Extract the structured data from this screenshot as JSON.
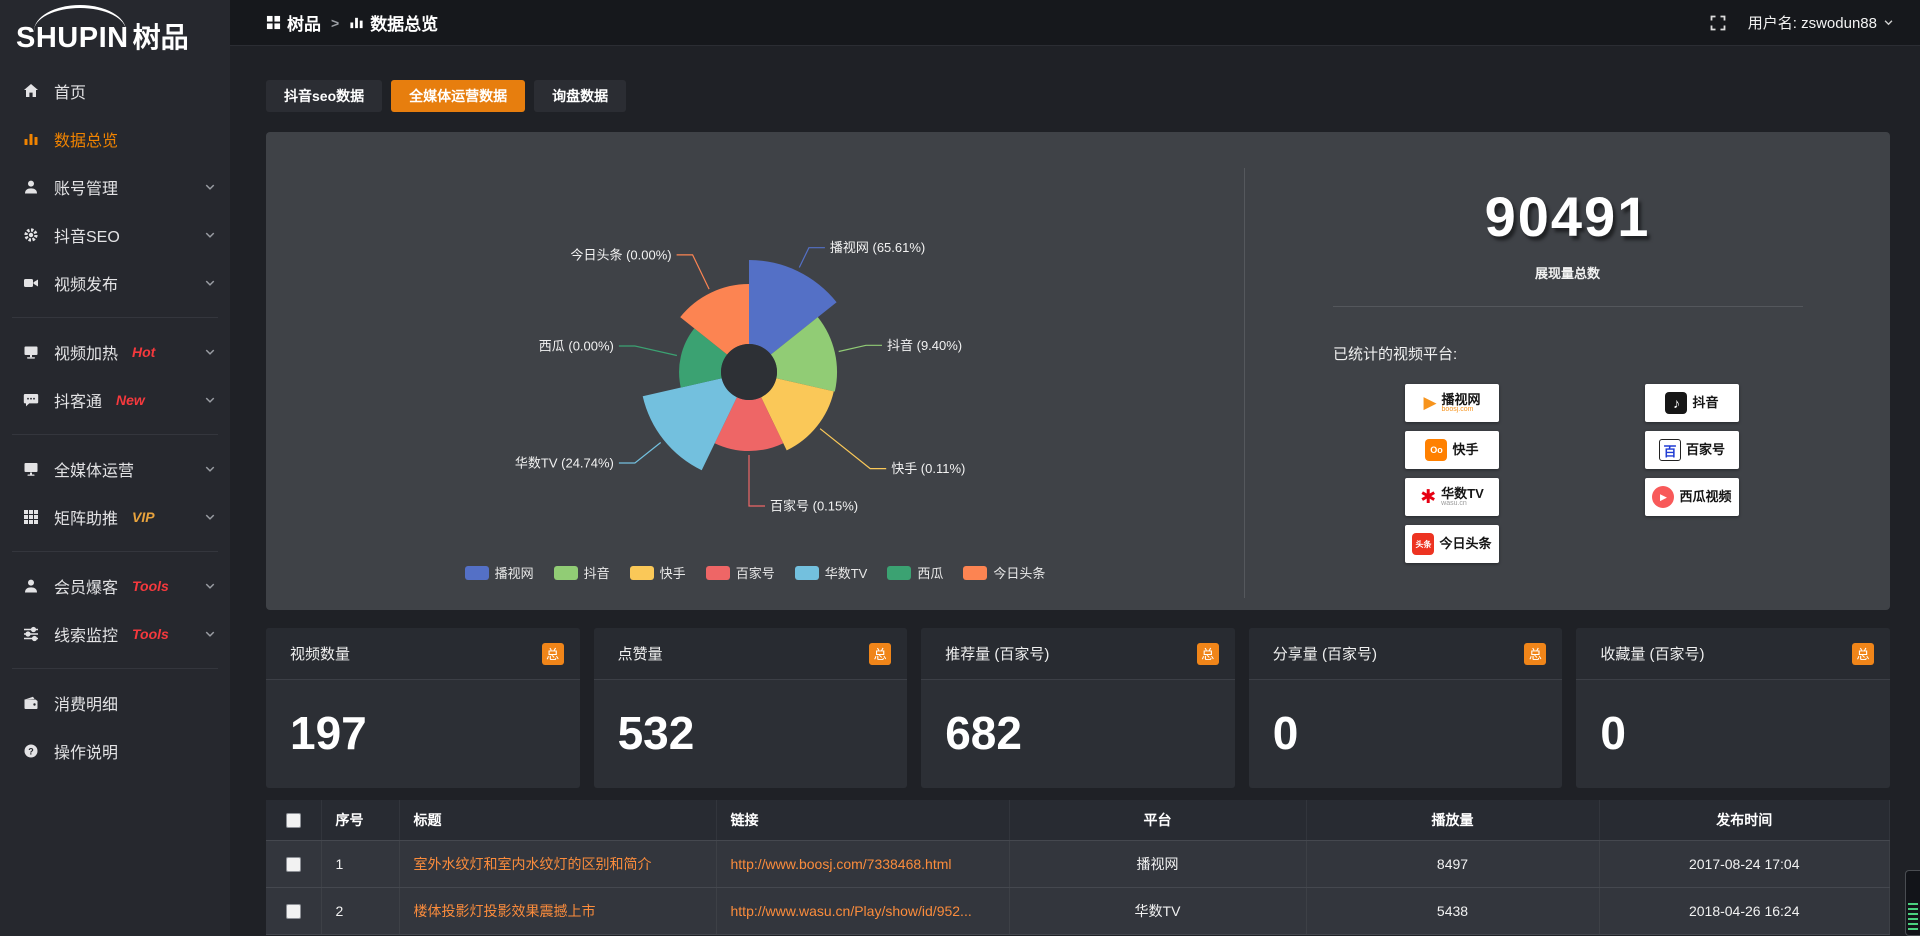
{
  "app": {
    "logo_en": "SHUPIN",
    "logo_cn": "树品"
  },
  "topbar": {
    "breadcrumb": [
      {
        "label": "树品",
        "icon": "grid-small-icon"
      },
      {
        "label": "数据总览",
        "icon": "chart-bars-icon"
      }
    ],
    "separator": ">",
    "username": "用户名: zswodun88"
  },
  "sidebar": {
    "items": [
      {
        "label": "首页",
        "icon": "home"
      },
      {
        "label": "数据总览",
        "icon": "chart-bars",
        "active": true
      },
      {
        "label": "账号管理",
        "icon": "user",
        "chevron": true
      },
      {
        "label": "抖音SEO",
        "icon": "gear",
        "chevron": true
      },
      {
        "label": "视频发布",
        "icon": "video",
        "chevron": true,
        "divider_after": true
      },
      {
        "label": "视频加热",
        "icon": "screen",
        "badge": "Hot",
        "badge_color": "#f5393d",
        "chevron": true
      },
      {
        "label": "抖客通",
        "icon": "chat",
        "badge": "New",
        "badge_color": "#f5393d",
        "chevron": true,
        "divider_after": true
      },
      {
        "label": "全媒体运营",
        "icon": "monitor",
        "chevron": true
      },
      {
        "label": "矩阵助推",
        "icon": "grid",
        "badge": "VIP",
        "badge_color": "#e8a33d",
        "chevron": true,
        "divider_after": true
      },
      {
        "label": "会员爆客",
        "icon": "user",
        "badge": "Tools",
        "badge_color": "#f5393d",
        "chevron": true
      },
      {
        "label": "线索监控",
        "icon": "sliders",
        "badge": "Tools",
        "badge_color": "#f5393d",
        "chevron": true,
        "divider_after": true
      },
      {
        "label": "消费明细",
        "icon": "wallet"
      },
      {
        "label": "操作说明",
        "icon": "question"
      }
    ]
  },
  "tabs": [
    {
      "label": "抖音seo数据",
      "active": false
    },
    {
      "label": "全媒体运营数据",
      "active": true
    },
    {
      "label": "询盘数据",
      "active": false
    }
  ],
  "chart_data": {
    "type": "pie",
    "subtype": "nightingale-rose",
    "equal_angles": true,
    "start_angle_deg": 0,
    "inner_radius_px": 28,
    "legend_position": "bottom-center",
    "series": [
      {
        "name": "播视网",
        "pct": 65.61,
        "color": "#5470c6",
        "radius_px": 112
      },
      {
        "name": "抖音",
        "pct": 9.4,
        "color": "#91cc75",
        "radius_px": 88
      },
      {
        "name": "快手",
        "pct": 0.11,
        "color": "#fac858",
        "radius_px": 87
      },
      {
        "name": "百家号",
        "pct": 0.15,
        "color": "#ee6666",
        "radius_px": 79
      },
      {
        "name": "华数TV",
        "pct": 24.74,
        "color": "#73c0de",
        "radius_px": 109
      },
      {
        "name": "西瓜",
        "pct": 0.0,
        "color": "#3ba272",
        "radius_px": 70
      },
      {
        "name": "今日头条",
        "pct": 0.0,
        "color": "#fc8452",
        "radius_px": 88
      }
    ]
  },
  "summary": {
    "total": "90491",
    "total_label": "展现量总数",
    "platforms_label": "已统计的视频平台:",
    "platforms": [
      {
        "name": "播视网",
        "sub": "boosj.com",
        "sub_color": "#f7941d",
        "icon": {
          "glyph": "▶",
          "shape": "none",
          "bg": "",
          "color": "#f7941d",
          "font": 17
        }
      },
      {
        "name": "快手",
        "sub": "",
        "icon": {
          "glyph": "Oo",
          "shape": "square",
          "bg": "#ff8000",
          "color": "#ffffff",
          "font": 9
        }
      },
      {
        "name": "华数TV",
        "sub": "wasu.cn",
        "sub_color": "#9a9a9a",
        "icon": {
          "glyph": "✱",
          "shape": "none",
          "bg": "",
          "color": "#e60012",
          "font": 19
        }
      },
      {
        "name": "今日头条",
        "sub": "",
        "icon": {
          "glyph": "头条",
          "shape": "square",
          "bg": "#ed3321",
          "color": "#ffffff",
          "font": 8
        }
      },
      {
        "name": "抖音",
        "sub": "",
        "icon": {
          "glyph": "♪",
          "shape": "square",
          "bg": "#161616",
          "color": "#ffffff",
          "font": 14
        }
      },
      {
        "name": "百家号",
        "sub": "",
        "icon": {
          "glyph": "百",
          "shape": "outline",
          "bg": "#ffffff",
          "color": "#1f3bd3",
          "font": 13
        }
      },
      {
        "name": "西瓜视频",
        "sub": "",
        "icon": {
          "glyph": "▶",
          "shape": "circle",
          "bg": "#f85959",
          "color": "#ffffff",
          "font": 9
        }
      }
    ]
  },
  "stat_cards": [
    {
      "label": "视频数量",
      "badge": "总",
      "value": "197"
    },
    {
      "label": "点赞量",
      "badge": "总",
      "value": "532"
    },
    {
      "label": "推荐量 (百家号)",
      "badge": "总",
      "value": "682"
    },
    {
      "label": "分享量 (百家号)",
      "badge": "总",
      "value": "0"
    },
    {
      "label": "收藏量 (百家号)",
      "badge": "总",
      "value": "0"
    }
  ],
  "table": {
    "headers": [
      "序号",
      "标题",
      "链接",
      "平台",
      "播放量",
      "发布时间"
    ],
    "rows": [
      {
        "no": "1",
        "title": "室外水纹灯和室内水纹灯的区别和简介",
        "link": "http://www.boosj.com/7338468.html",
        "platform": "播视网",
        "plays": "8497",
        "time": "2017-08-24 17:04"
      },
      {
        "no": "2",
        "title": "楼体投影灯投影效果震撼上市",
        "link": "http://www.wasu.cn/Play/show/id/952...",
        "platform": "华数TV",
        "plays": "5438",
        "time": "2018-04-26 16:24"
      }
    ]
  },
  "colors": {
    "accent": "#e77e0e",
    "link": "#fb8c3c",
    "active_menu": "#f08300"
  }
}
